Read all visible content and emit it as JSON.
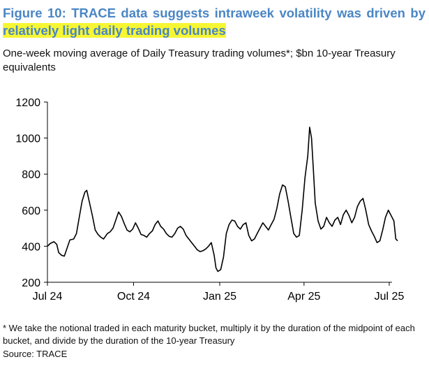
{
  "header": {
    "title_part1": "Figure 10: TRACE data suggests intraweek volatility was driven by ",
    "title_part2": "relatively light daily trading volumes",
    "subtitle": "One-week moving average of Daily Treasury trading volumes*; $bn 10-year Treasury equivalents"
  },
  "footer": {
    "footnote": "* We take the notional traded in each maturity bucket, multiply it by the duration of the midpoint of each bucket, and divide by the duration of the 10-year Treasury",
    "source": "Source: TRACE"
  },
  "colors": {
    "title": "#4a86c5",
    "highlight": "#f6f633",
    "line": "#000000"
  },
  "chart_data": {
    "type": "line",
    "title": "",
    "xlabel": "",
    "ylabel": "",
    "ylim": [
      200,
      1200
    ],
    "xlim": [
      "2024-07-01",
      "2025-07-01"
    ],
    "yticks": [
      200,
      400,
      600,
      800,
      1000,
      1200
    ],
    "xticks": [
      {
        "label": "Jul 24",
        "date": "2024-07-01"
      },
      {
        "label": "Oct 24",
        "date": "2024-10-01"
      },
      {
        "label": "Jan 25",
        "date": "2025-01-01"
      },
      {
        "label": "Apr 25",
        "date": "2025-04-01"
      },
      {
        "label": "Jul 25",
        "date": "2025-07-01"
      }
    ],
    "grid": false,
    "legend": "none",
    "series": [
      {
        "name": "",
        "points": [
          [
            "2024-07-01",
            400
          ],
          [
            "2024-07-04",
            415
          ],
          [
            "2024-07-08",
            425
          ],
          [
            "2024-07-11",
            410
          ],
          [
            "2024-07-13",
            365
          ],
          [
            "2024-07-16",
            350
          ],
          [
            "2024-07-19",
            345
          ],
          [
            "2024-07-22",
            390
          ],
          [
            "2024-07-25",
            435
          ],
          [
            "2024-07-29",
            440
          ],
          [
            "2024-08-01",
            470
          ],
          [
            "2024-08-04",
            560
          ],
          [
            "2024-08-07",
            650
          ],
          [
            "2024-08-10",
            700
          ],
          [
            "2024-08-12",
            710
          ],
          [
            "2024-08-15",
            640
          ],
          [
            "2024-08-18",
            570
          ],
          [
            "2024-08-21",
            490
          ],
          [
            "2024-08-24",
            465
          ],
          [
            "2024-08-27",
            450
          ],
          [
            "2024-08-30",
            440
          ],
          [
            "2024-09-03",
            470
          ],
          [
            "2024-09-06",
            480
          ],
          [
            "2024-09-09",
            500
          ],
          [
            "2024-09-12",
            545
          ],
          [
            "2024-09-15",
            590
          ],
          [
            "2024-09-18",
            565
          ],
          [
            "2024-09-21",
            525
          ],
          [
            "2024-09-24",
            490
          ],
          [
            "2024-09-27",
            480
          ],
          [
            "2024-09-30",
            495
          ],
          [
            "2024-10-03",
            530
          ],
          [
            "2024-10-06",
            500
          ],
          [
            "2024-10-09",
            465
          ],
          [
            "2024-10-12",
            460
          ],
          [
            "2024-10-15",
            450
          ],
          [
            "2024-10-18",
            470
          ],
          [
            "2024-10-21",
            485
          ],
          [
            "2024-10-24",
            520
          ],
          [
            "2024-10-27",
            540
          ],
          [
            "2024-10-30",
            510
          ],
          [
            "2024-11-02",
            495
          ],
          [
            "2024-11-05",
            470
          ],
          [
            "2024-11-08",
            455
          ],
          [
            "2024-11-11",
            450
          ],
          [
            "2024-11-14",
            470
          ],
          [
            "2024-11-17",
            500
          ],
          [
            "2024-11-20",
            510
          ],
          [
            "2024-11-23",
            495
          ],
          [
            "2024-11-26",
            460
          ],
          [
            "2024-11-29",
            440
          ],
          [
            "2024-12-02",
            420
          ],
          [
            "2024-12-05",
            400
          ],
          [
            "2024-12-08",
            380
          ],
          [
            "2024-12-11",
            370
          ],
          [
            "2024-12-14",
            375
          ],
          [
            "2024-12-17",
            385
          ],
          [
            "2024-12-20",
            400
          ],
          [
            "2024-12-23",
            420
          ],
          [
            "2024-12-26",
            350
          ],
          [
            "2024-12-28",
            280
          ],
          [
            "2024-12-30",
            260
          ],
          [
            "2025-01-02",
            270
          ],
          [
            "2025-01-05",
            340
          ],
          [
            "2025-01-08",
            470
          ],
          [
            "2025-01-11",
            520
          ],
          [
            "2025-01-14",
            545
          ],
          [
            "2025-01-17",
            540
          ],
          [
            "2025-01-20",
            510
          ],
          [
            "2025-01-23",
            495
          ],
          [
            "2025-01-26",
            520
          ],
          [
            "2025-01-29",
            530
          ],
          [
            "2025-02-01",
            460
          ],
          [
            "2025-02-04",
            430
          ],
          [
            "2025-02-07",
            440
          ],
          [
            "2025-02-10",
            470
          ],
          [
            "2025-02-13",
            500
          ],
          [
            "2025-02-16",
            530
          ],
          [
            "2025-02-19",
            510
          ],
          [
            "2025-02-22",
            490
          ],
          [
            "2025-02-25",
            520
          ],
          [
            "2025-02-28",
            550
          ],
          [
            "2025-03-03",
            610
          ],
          [
            "2025-03-06",
            690
          ],
          [
            "2025-03-09",
            740
          ],
          [
            "2025-03-12",
            730
          ],
          [
            "2025-03-15",
            650
          ],
          [
            "2025-03-18",
            560
          ],
          [
            "2025-03-21",
            470
          ],
          [
            "2025-03-24",
            450
          ],
          [
            "2025-03-27",
            460
          ],
          [
            "2025-03-30",
            600
          ],
          [
            "2025-04-02",
            780
          ],
          [
            "2025-04-05",
            900
          ],
          [
            "2025-04-07",
            1060
          ],
          [
            "2025-04-09",
            1000
          ],
          [
            "2025-04-11",
            820
          ],
          [
            "2025-04-13",
            640
          ],
          [
            "2025-04-16",
            540
          ],
          [
            "2025-04-19",
            495
          ],
          [
            "2025-04-22",
            510
          ],
          [
            "2025-04-25",
            560
          ],
          [
            "2025-04-28",
            530
          ],
          [
            "2025-05-01",
            510
          ],
          [
            "2025-05-04",
            545
          ],
          [
            "2025-05-07",
            560
          ],
          [
            "2025-05-10",
            520
          ],
          [
            "2025-05-13",
            575
          ],
          [
            "2025-05-16",
            600
          ],
          [
            "2025-05-19",
            570
          ],
          [
            "2025-05-22",
            530
          ],
          [
            "2025-05-25",
            560
          ],
          [
            "2025-05-28",
            620
          ],
          [
            "2025-05-31",
            650
          ],
          [
            "2025-06-03",
            665
          ],
          [
            "2025-06-06",
            600
          ],
          [
            "2025-06-09",
            520
          ],
          [
            "2025-06-12",
            485
          ],
          [
            "2025-06-15",
            455
          ],
          [
            "2025-06-18",
            420
          ],
          [
            "2025-06-21",
            430
          ],
          [
            "2025-06-24",
            490
          ],
          [
            "2025-06-27",
            560
          ],
          [
            "2025-06-30",
            600
          ],
          [
            "2025-07-03",
            570
          ],
          [
            "2025-07-06",
            540
          ],
          [
            "2025-07-08",
            440
          ],
          [
            "2025-07-10",
            430
          ]
        ]
      }
    ]
  }
}
